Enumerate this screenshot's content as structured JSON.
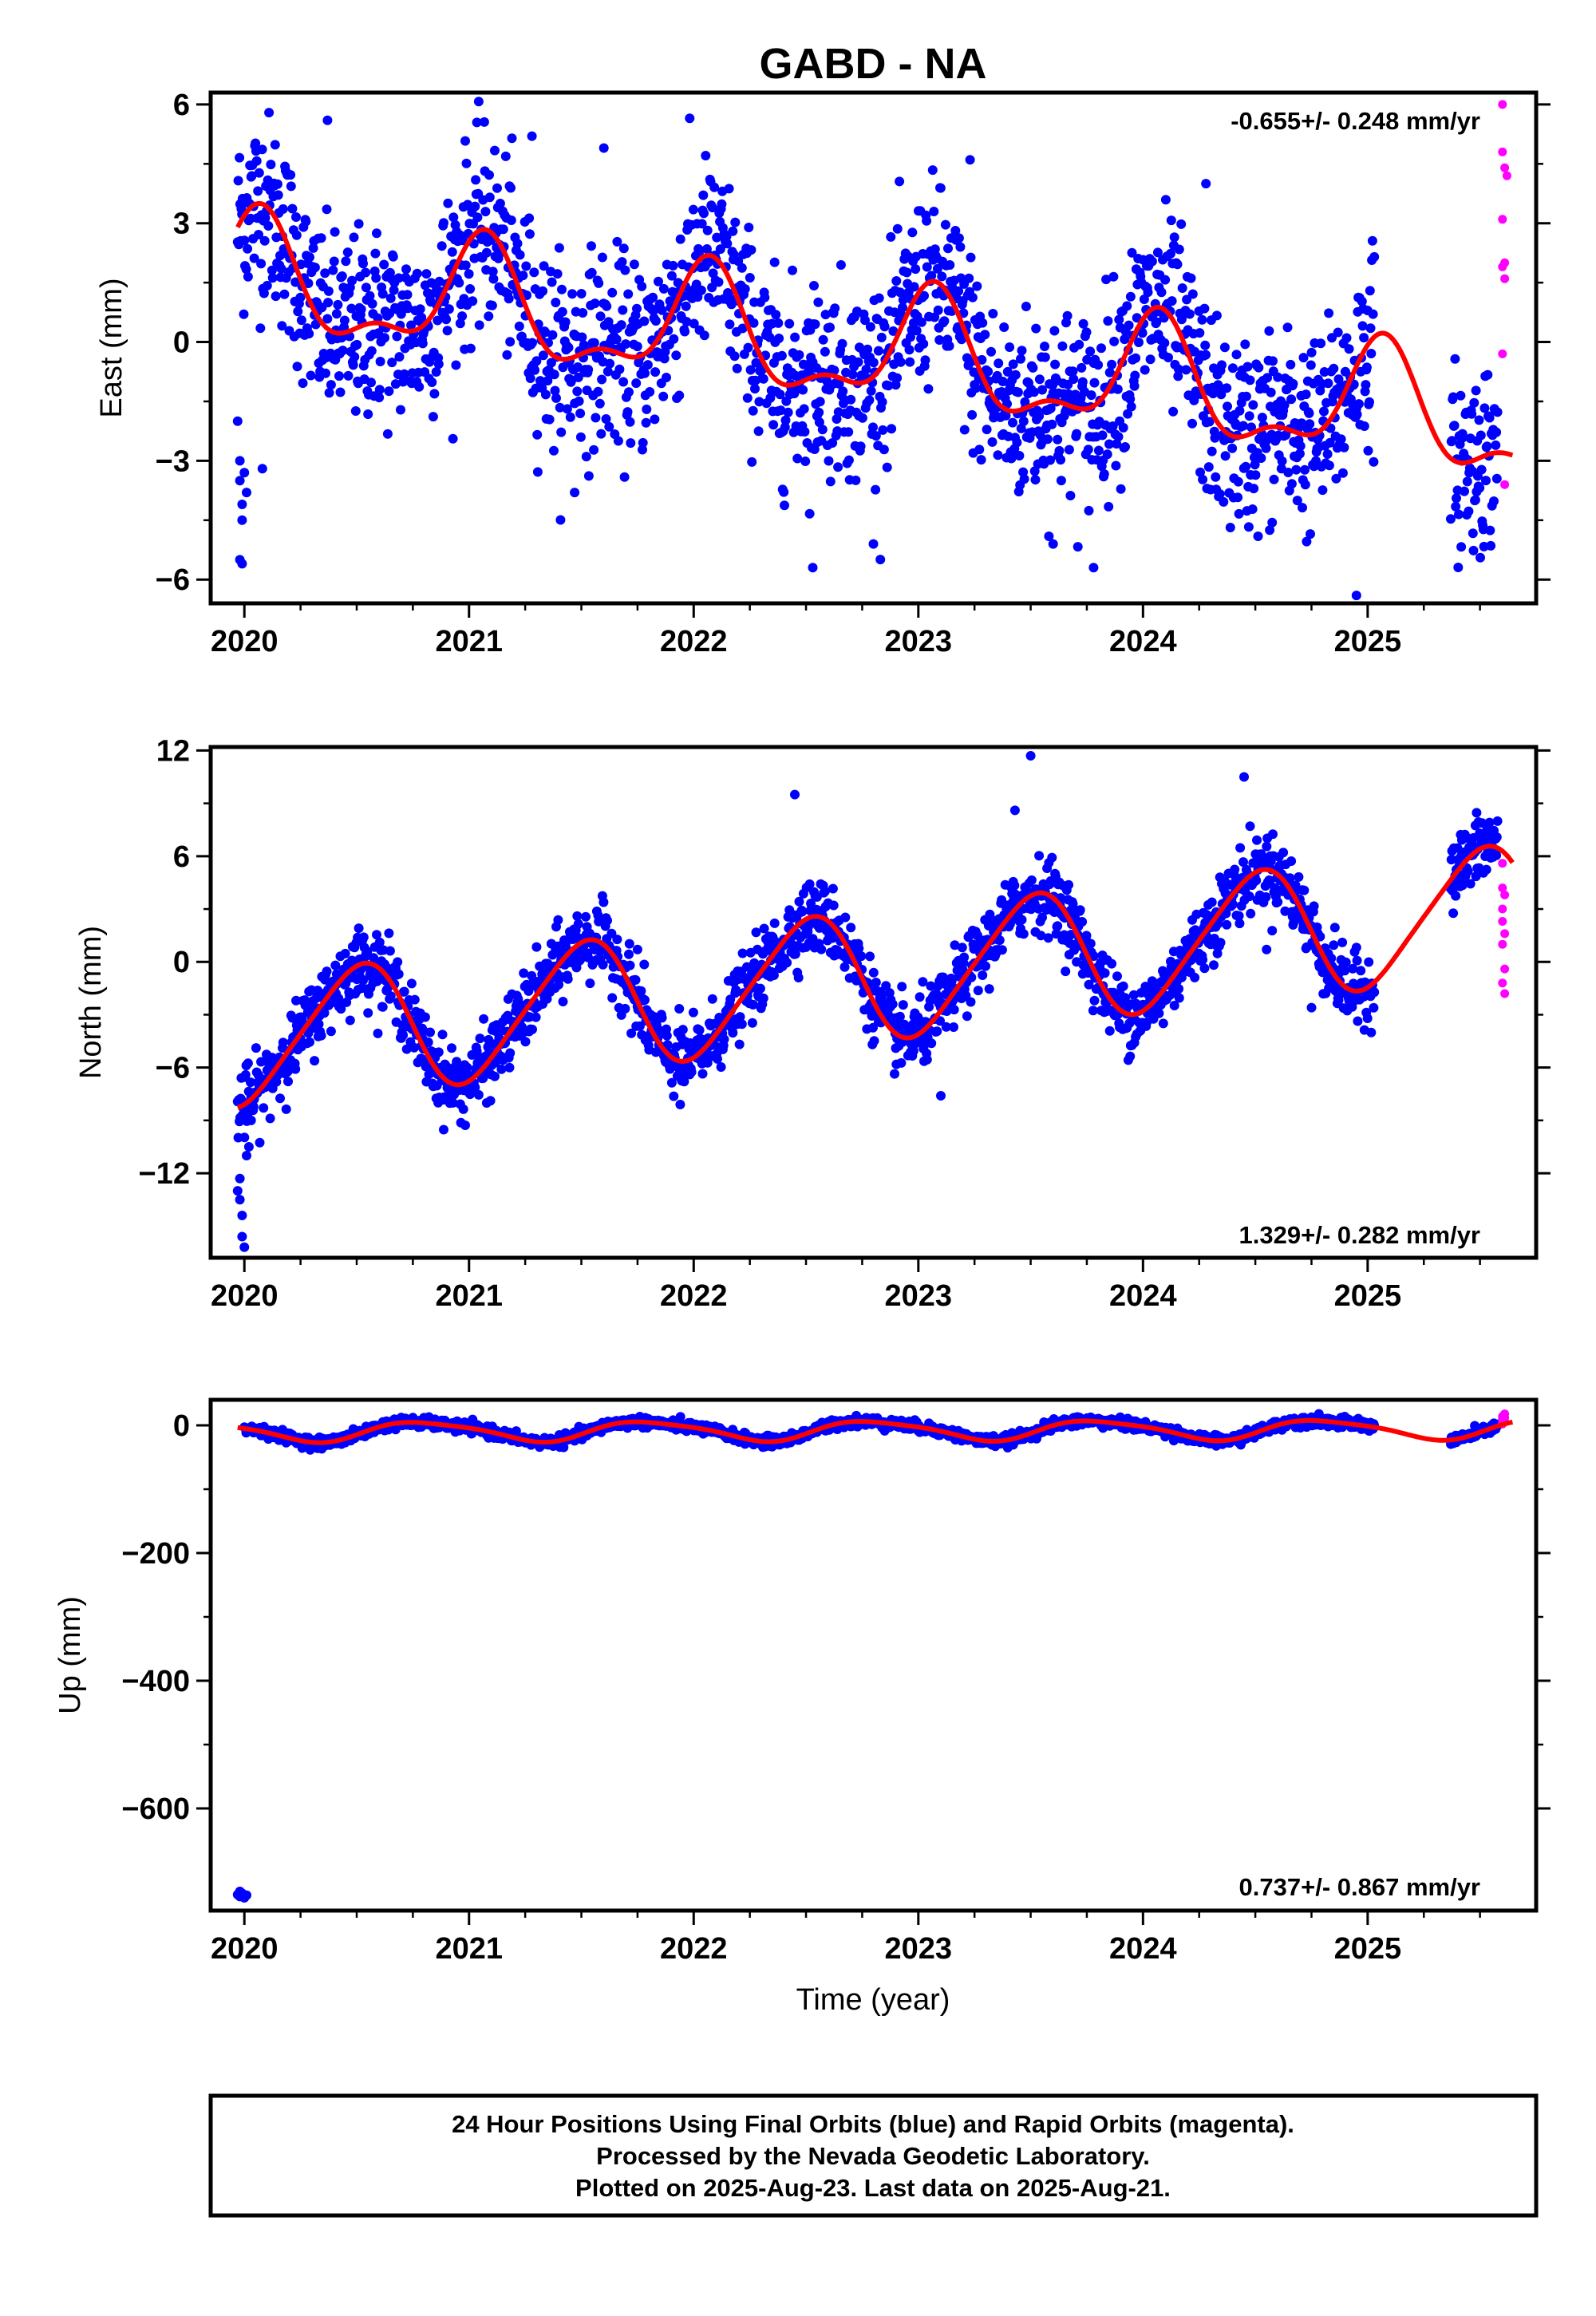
{
  "title": "GABD - NA",
  "colors": {
    "final": "#0000ff",
    "rapid": "#ff00ff",
    "model": "#ff0000",
    "frame": "#000000"
  },
  "chart_data": [
    {
      "type": "scatter",
      "panel": "east",
      "ylabel": "East (mm)",
      "xlabel": "",
      "rate_text": "-0.655+/- 0.248 mm/yr",
      "rate_position": "top-right",
      "xlim": [
        2019.85,
        2025.75
      ],
      "ylim": [
        -6.6,
        6.3
      ],
      "xticks": [
        "2020",
        "2021",
        "2022",
        "2023",
        "2024",
        "2025"
      ],
      "yticks": [
        6,
        3,
        0,
        -3,
        -6
      ],
      "ytick_labels": [
        "6",
        "3",
        "0",
        "−3",
        "−6"
      ],
      "model": {
        "trend_mm_per_yr": -0.655,
        "offset_mm": 1.6,
        "ref_year": 2020.0,
        "annual_amp": 1.35,
        "annual_phase": 1.2,
        "semiannual_amp": 0.6,
        "semiannual_phase": 0.6,
        "start": 2019.97,
        "end": 2025.65
      },
      "scatter_noise_mm": 1.2,
      "final_series": {
        "name": "Final Orbits (blue)",
        "segments": [
          [
            2019.97,
            2025.03
          ],
          [
            2025.37,
            2025.58
          ]
        ],
        "early_points": [
          [
            2019.97,
            -2.0
          ],
          [
            2019.98,
            -3.0
          ],
          [
            2019.98,
            -3.5
          ],
          [
            2019.99,
            -4.1
          ],
          [
            2019.99,
            -4.5
          ],
          [
            2019.98,
            -5.5
          ],
          [
            2019.99,
            -5.6
          ],
          [
            2020.0,
            -3.3
          ],
          [
            2020.01,
            -3.8
          ],
          [
            2020.08,
            -3.2
          ]
        ],
        "outliers": [
          [
            2020.37,
            5.6
          ],
          [
            2021.28,
            5.2
          ],
          [
            2021.47,
            -3.8
          ],
          [
            2021.6,
            4.9
          ],
          [
            2022.53,
            -5.7
          ],
          [
            2022.8,
            -5.1
          ],
          [
            2023.23,
            4.6
          ],
          [
            2023.6,
            -5.1
          ],
          [
            2023.78,
            -5.7
          ],
          [
            2024.28,
            4.0
          ],
          [
            2024.95,
            -6.4
          ]
        ]
      },
      "rapid_series": {
        "name": "Rapid Orbits (magenta)",
        "points": [
          [
            2025.6,
            6.0
          ],
          [
            2025.6,
            4.8
          ],
          [
            2025.61,
            4.4
          ],
          [
            2025.6,
            3.1
          ],
          [
            2025.6,
            1.9
          ],
          [
            2025.61,
            1.6
          ],
          [
            2025.61,
            2.0
          ],
          [
            2025.6,
            -0.3
          ],
          [
            2025.61,
            -3.6
          ],
          [
            2025.62,
            4.2
          ]
        ]
      }
    },
    {
      "type": "scatter",
      "panel": "north",
      "ylabel": "North (mm)",
      "xlabel": "",
      "rate_text": "1.329+/- 0.282 mm/yr",
      "rate_position": "bottom-right",
      "xlim": [
        2019.85,
        2025.75
      ],
      "ylim": [
        -16.8,
        12.2
      ],
      "xticks": [
        "2020",
        "2021",
        "2022",
        "2023",
        "2024",
        "2025"
      ],
      "yticks": [
        12,
        6,
        0,
        -6,
        -12
      ],
      "ytick_labels": [
        "12",
        "6",
        "0",
        "−6",
        "−12"
      ],
      "model": {
        "trend_mm_per_yr": 1.329,
        "offset_mm": -4.5,
        "ref_year": 2020.0,
        "annual_amp": 3.6,
        "annual_phase": -1.55,
        "semiannual_amp": 0.5,
        "semiannual_phase": 0.0,
        "start": 2019.97,
        "end": 2025.65
      },
      "scatter_noise_mm": 1.0,
      "final_series": {
        "name": "Final Orbits (blue)",
        "segments": [
          [
            2019.97,
            2025.03
          ],
          [
            2025.37,
            2025.58
          ]
        ],
        "early_points": [
          [
            2019.97,
            -13.0
          ],
          [
            2019.98,
            -12.3
          ],
          [
            2019.98,
            -13.5
          ],
          [
            2019.99,
            -14.4
          ],
          [
            2019.99,
            -15.6
          ],
          [
            2020.0,
            -16.2
          ],
          [
            2020.01,
            -11.0
          ],
          [
            2020.02,
            -10.5
          ],
          [
            2020.03,
            -9.0
          ],
          [
            2020.04,
            -8.2
          ]
        ],
        "outliers": [
          [
            2021.75,
            0.7
          ],
          [
            2021.94,
            -8.1
          ],
          [
            2022.45,
            9.5
          ],
          [
            2023.1,
            -7.6
          ],
          [
            2023.5,
            11.7
          ],
          [
            2023.43,
            8.6
          ],
          [
            2024.45,
            10.5
          ],
          [
            2024.55,
            0.7
          ],
          [
            2024.75,
            -2.6
          ]
        ]
      },
      "rapid_series": {
        "name": "Rapid Orbits (magenta)",
        "points": [
          [
            2025.6,
            5.6
          ],
          [
            2025.6,
            4.2
          ],
          [
            2025.61,
            3.8
          ],
          [
            2025.6,
            3.0
          ],
          [
            2025.61,
            1.6
          ],
          [
            2025.6,
            1.0
          ],
          [
            2025.61,
            -0.4
          ],
          [
            2025.6,
            -1.2
          ],
          [
            2025.61,
            -1.8
          ],
          [
            2025.6,
            2.3
          ]
        ]
      }
    },
    {
      "type": "scatter",
      "panel": "up",
      "ylabel": "Up (mm)",
      "xlabel": "Time (year)",
      "rate_text": "0.737+/- 0.867 mm/yr",
      "rate_position": "bottom-right",
      "xlim": [
        2019.85,
        2025.75
      ],
      "ylim": [
        -760,
        40
      ],
      "xticks": [
        "2020",
        "2021",
        "2022",
        "2023",
        "2024",
        "2025"
      ],
      "yticks": [
        0,
        -200,
        -400,
        -600
      ],
      "ytick_labels": [
        "0",
        "−200",
        "−400",
        "−600"
      ],
      "model": {
        "trend_mm_per_yr": 0.737,
        "offset_mm": -10.0,
        "ref_year": 2020.0,
        "annual_amp": 15.0,
        "annual_phase": 2.8,
        "semiannual_amp": 3.0,
        "semiannual_phase": 0.0,
        "start": 2019.97,
        "end": 2025.65
      },
      "scatter_noise_mm": 4.0,
      "final_series": {
        "name": "Final Orbits (blue)",
        "segments": [
          [
            2020.0,
            2025.03
          ],
          [
            2025.37,
            2025.58
          ]
        ],
        "early_points": [
          [
            2019.97,
            -735
          ],
          [
            2019.98,
            -738
          ],
          [
            2019.99,
            -733
          ],
          [
            2020.0,
            -740
          ],
          [
            2020.01,
            -736
          ],
          [
            2019.98,
            -730
          ]
        ],
        "outliers": []
      },
      "rapid_series": {
        "name": "Rapid Orbits (magenta)",
        "points": [
          [
            2025.6,
            10
          ],
          [
            2025.6,
            4
          ],
          [
            2025.61,
            18
          ],
          [
            2025.6,
            14
          ],
          [
            2025.61,
            6
          ],
          [
            2025.6,
            2
          ],
          [
            2025.61,
            12
          ]
        ]
      }
    }
  ],
  "footer": {
    "line1": "24 Hour Positions Using Final Orbits (blue) and Rapid Orbits (magenta).",
    "line2": "Processed by the Nevada Geodetic Laboratory.",
    "line3": "Plotted on 2025-Aug-23. Last data on 2025-Aug-21."
  }
}
